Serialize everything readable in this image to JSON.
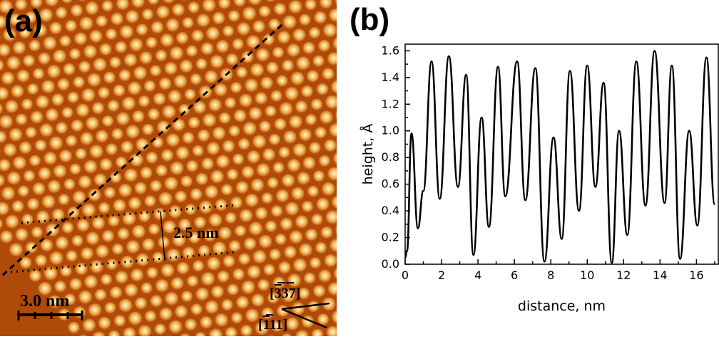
{
  "panel_a": {
    "label": "(a)",
    "spacing_label": "2.5 nm",
    "scale_bar_label": "3.0 nm",
    "direction_1": "[̅3̅37]",
    "direction_2": "[̅1̅11]",
    "direction_1_parts": [
      "[",
      "3",
      "37]"
    ],
    "direction_2_parts": [
      "[",
      "1",
      "11]"
    ],
    "colormap": [
      "#5c1800",
      "#b04a0a",
      "#e0902e",
      "#f6c878",
      "#fff4d8"
    ]
  },
  "panel_b": {
    "label": "(b)"
  },
  "chart_data": {
    "type": "line",
    "title": "",
    "xlabel": "distance, nm",
    "ylabel": "height, Å",
    "xlim": [
      0,
      17.2
    ],
    "ylim": [
      0,
      1.65
    ],
    "xticks": [
      0,
      2,
      4,
      6,
      8,
      10,
      12,
      14,
      16
    ],
    "yticks": [
      0.0,
      0.2,
      0.4,
      0.6,
      0.8,
      1.0,
      1.2,
      1.4,
      1.6
    ],
    "grid": false,
    "series": [
      {
        "color": "#000000",
        "x": [
          0.0,
          0.1,
          0.35,
          0.7,
          1.0,
          1.45,
          1.9,
          2.4,
          2.9,
          3.35,
          3.75,
          4.2,
          4.6,
          5.1,
          5.5,
          6.15,
          6.6,
          7.15,
          7.65,
          8.15,
          8.6,
          9.05,
          9.55,
          10.0,
          10.45,
          10.9,
          11.35,
          11.75,
          12.2,
          12.7,
          13.2,
          13.7,
          14.25,
          14.65,
          15.1,
          15.6,
          16.05,
          16.55,
          17.0
        ],
        "y": [
          0.05,
          0.1,
          0.98,
          0.27,
          0.55,
          1.52,
          0.49,
          1.56,
          0.58,
          1.42,
          0.07,
          1.1,
          0.28,
          1.48,
          0.51,
          1.52,
          0.48,
          1.47,
          0.02,
          0.95,
          0.19,
          1.45,
          0.4,
          1.49,
          0.58,
          1.36,
          0.01,
          1.0,
          0.22,
          1.52,
          0.44,
          1.6,
          0.46,
          1.49,
          0.04,
          1.0,
          0.29,
          1.55,
          0.45
        ]
      }
    ]
  }
}
